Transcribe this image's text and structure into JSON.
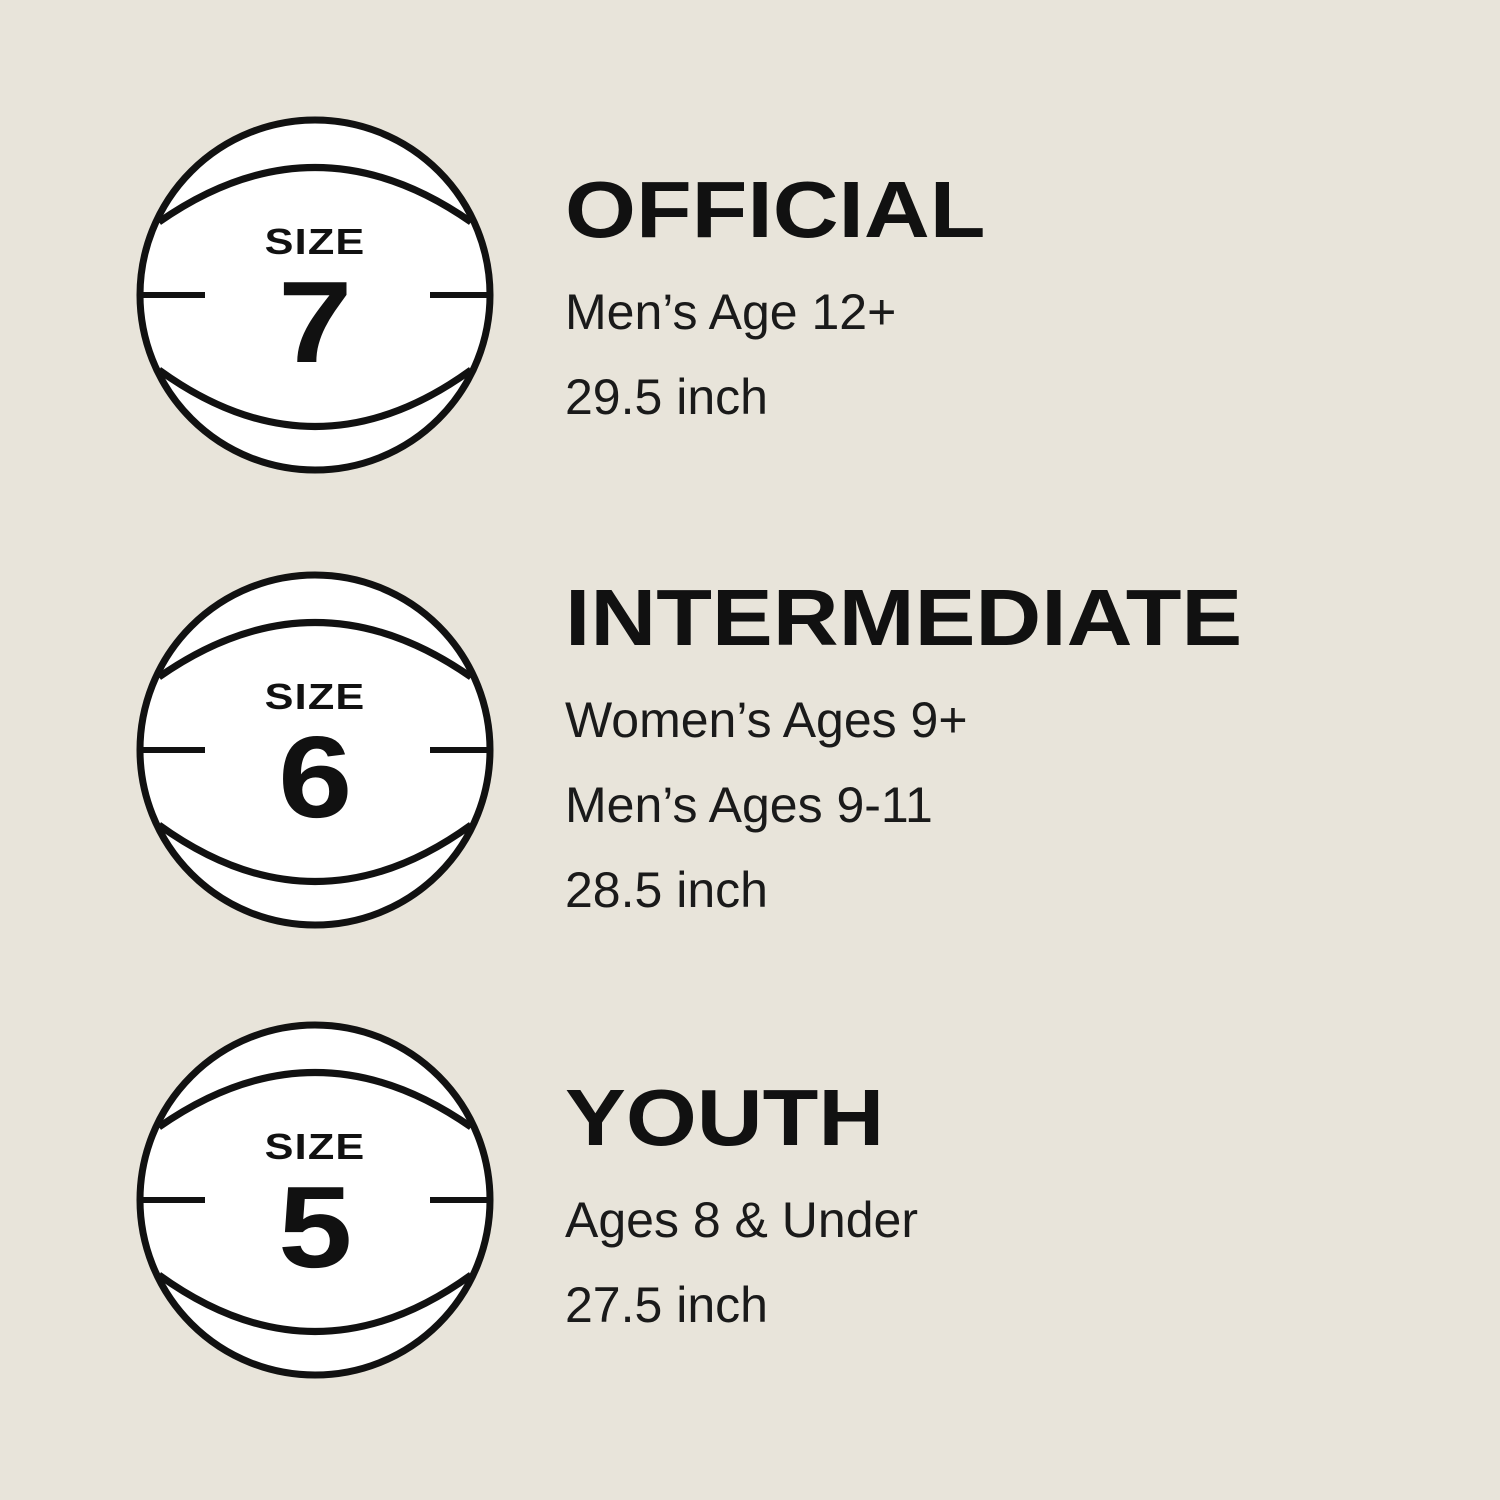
{
  "colors": {
    "background": "#e8e4da",
    "ink": "#111111",
    "ball_fill": "#ffffff"
  },
  "sizes": [
    {
      "size_label": "SIZE",
      "size_number": "7",
      "title": "OFFICIAL",
      "lines": [
        "Men’s Age 12+",
        "29.5 inch"
      ]
    },
    {
      "size_label": "SIZE",
      "size_number": "6",
      "title": "INTERMEDIATE",
      "lines": [
        "Women’s Ages 9+",
        "Men’s Ages 9-11",
        "28.5 inch"
      ]
    },
    {
      "size_label": "SIZE",
      "size_number": "5",
      "title": "YOUTH",
      "lines": [
        "Ages 8 & Under",
        "27.5 inch"
      ]
    }
  ]
}
